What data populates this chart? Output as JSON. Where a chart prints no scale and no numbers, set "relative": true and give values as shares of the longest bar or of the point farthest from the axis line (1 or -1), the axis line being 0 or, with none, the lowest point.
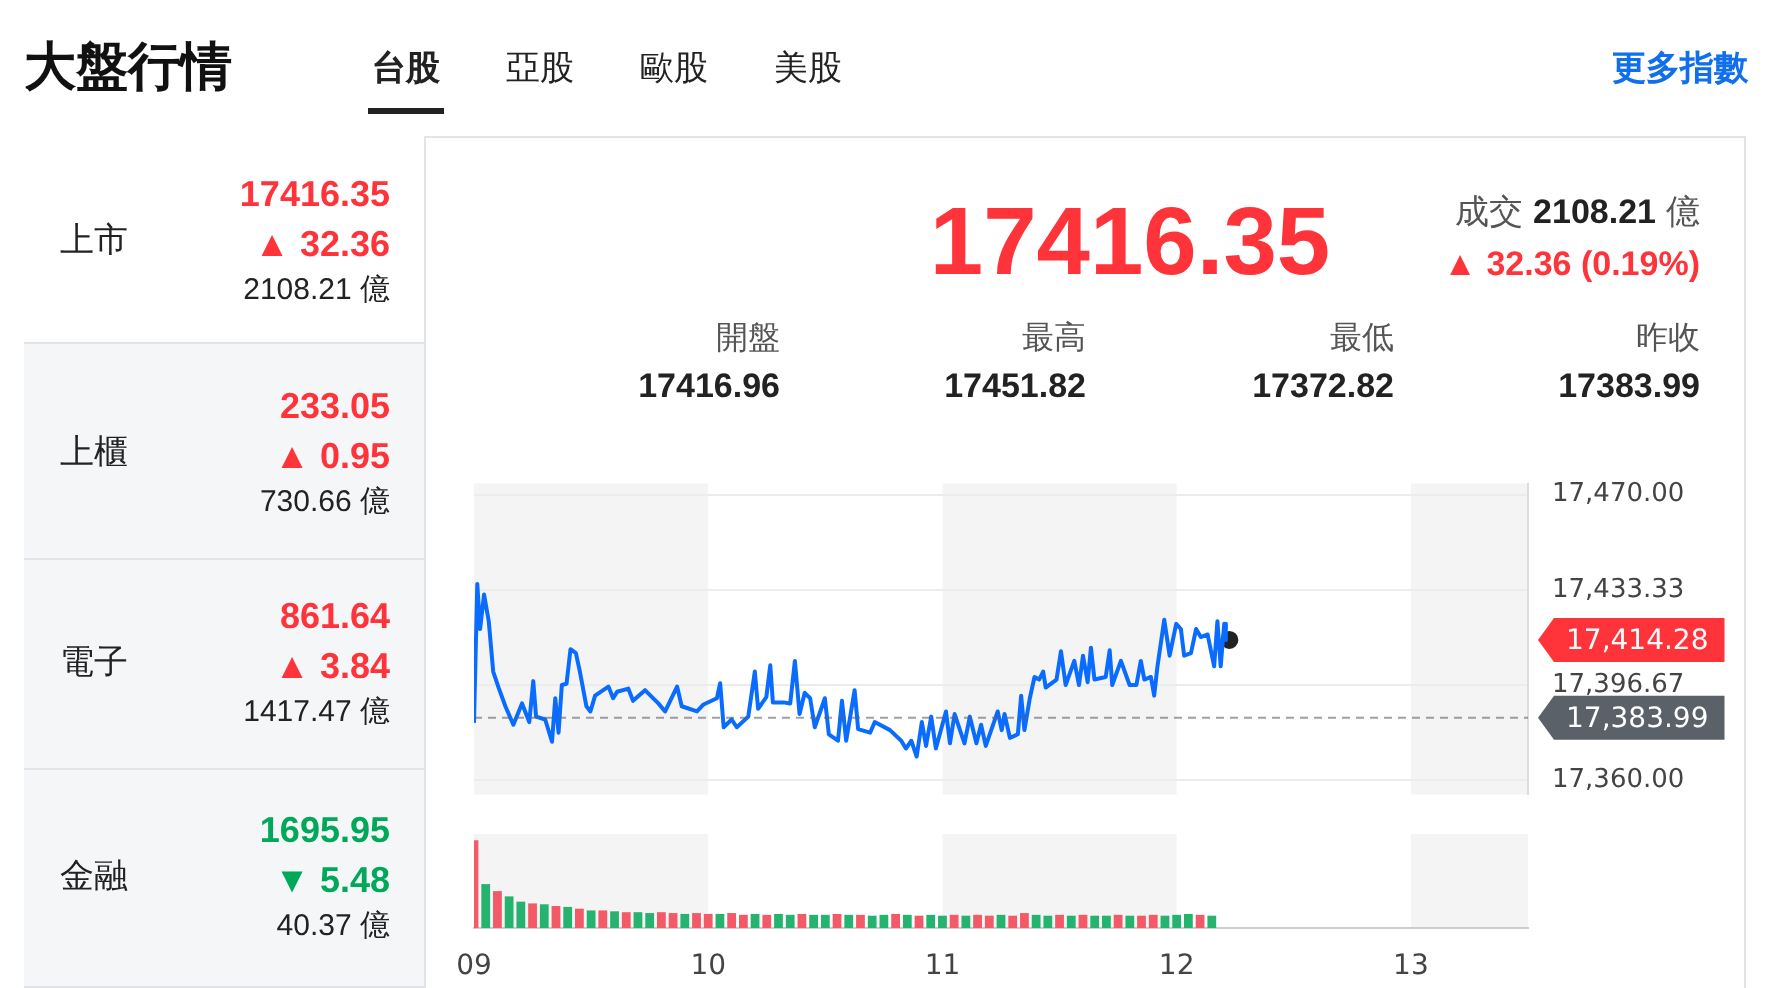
{
  "chart_data": [
    {
      "type": "other",
      "title": "大盤行情",
      "annotations": [
        "台股",
        "亞股",
        "歐股",
        "美股",
        "更多指數",
        "上市",
        "17416.35",
        "▲ 32.36",
        "2108.21 億",
        "上櫃",
        "233.05",
        "▲ 0.95",
        "730.66 億",
        "電子",
        "861.64",
        "▲ 3.84",
        "1417.47 億",
        "金融",
        "1695.95",
        "▼ 5.48",
        "40.37 億",
        "17416.35",
        "成交",
        "2108.21",
        "億",
        "▲ 32.36 (0.19%)",
        "開盤",
        "17416.96",
        "最高",
        "17451.82",
        "最低",
        "17372.82",
        "昨收",
        "17383.99"
      ]
    },
    {
      "type": "line",
      "xlim": [
        9,
        13.5
      ],
      "ylim": [
        17354.4,
        17474.3
      ],
      "yticks": [
        {
          "value": 17470,
          "label": "17,470.00"
        },
        {
          "value": 17433.33,
          "label": "17,433.33"
        },
        {
          "value": 17396.67,
          "label": "17,396.67"
        },
        {
          "value": 17360,
          "label": "17,360.00"
        }
      ],
      "grid": "y",
      "tick_labels": "y",
      "bands": [
        {
          "axis": "x",
          "from": 9,
          "to": 10,
          "color": "#f4f4f4"
        },
        {
          "axis": "x",
          "from": 11,
          "to": 12,
          "color": "#f4f4f4"
        },
        {
          "axis": "x",
          "from": 13,
          "to": 13.5,
          "color": "#f4f4f4"
        }
      ],
      "ref_lines": [
        {
          "axis": "y",
          "value": 17383.99,
          "label": "17,383.99",
          "color": "#5b6168",
          "line_style": "dashed"
        }
      ],
      "annotations": [
        {
          "text": "17,414.28",
          "x": 13.5,
          "y": 17414
        }
      ],
      "series": [
        {
          "color": "#0a6cff",
          "x": [
            9.0,
            9.014,
            9.026,
            9.043,
            9.063,
            9.082,
            9.105,
            9.134,
            9.168,
            9.205,
            9.236,
            9.253,
            9.265,
            9.304,
            9.333,
            9.347,
            9.361,
            9.375,
            9.395,
            9.412,
            9.435,
            9.452,
            9.48,
            9.497,
            9.517,
            9.574,
            9.594,
            9.611,
            9.659,
            9.679,
            9.73,
            9.787,
            9.816,
            9.867,
            9.887,
            9.952,
            9.98,
            10.037,
            10.051,
            10.066,
            10.1,
            10.122,
            10.171,
            10.199,
            10.213,
            10.248,
            10.265,
            10.276,
            10.321,
            10.35,
            10.37,
            10.39,
            10.412,
            10.435,
            10.455,
            10.498,
            10.515,
            10.554,
            10.571,
            10.589,
            10.625,
            10.64,
            10.691,
            10.711,
            10.776,
            10.824,
            10.844,
            10.867,
            10.89,
            10.912,
            10.93,
            10.952,
            10.972,
            11.015,
            11.032,
            11.052,
            11.094,
            11.117,
            11.145,
            11.165,
            11.185,
            11.236,
            11.253,
            11.265,
            11.288,
            11.322,
            11.336,
            11.35,
            11.373,
            11.393,
            11.413,
            11.43,
            11.441,
            11.487,
            11.506,
            11.526,
            11.563,
            11.583,
            11.6,
            11.62,
            11.634,
            11.649,
            11.697,
            11.714,
            11.725,
            11.762,
            11.799,
            11.828,
            11.847,
            11.862,
            11.89,
            11.904,
            11.918,
            11.947,
            11.97,
            11.998,
            12.018,
            12.032,
            12.061,
            12.083,
            12.103,
            12.132,
            12.16,
            12.174,
            12.188,
            12.203,
            12.21
          ],
          "values": [
            17382,
            17435.6,
            17418.2,
            17431.5,
            17421.2,
            17401.8,
            17395.6,
            17388.4,
            17381.3,
            17389.5,
            17382.3,
            17398.1,
            17384.4,
            17383.3,
            17374.7,
            17391.5,
            17378.2,
            17396.6,
            17397.1,
            17410.4,
            17408.9,
            17401.8,
            17388.4,
            17386.4,
            17392.5,
            17396,
            17391.5,
            17394,
            17395.2,
            17390.5,
            17394.6,
            17389.5,
            17386.4,
            17396,
            17388.4,
            17386.4,
            17389.1,
            17391.5,
            17397.3,
            17380.3,
            17383.3,
            17380.3,
            17384.4,
            17401.8,
            17387.4,
            17391.9,
            17404.2,
            17389.9,
            17389.9,
            17389.5,
            17405.9,
            17385.4,
            17393.6,
            17391.5,
            17380.3,
            17391.5,
            17377.6,
            17375.1,
            17390.5,
            17375.1,
            17394.6,
            17379.6,
            17378.2,
            17382.3,
            17379.2,
            17375.1,
            17372.1,
            17375.1,
            17369,
            17382.3,
            17373.1,
            17384.4,
            17372.1,
            17386.4,
            17374.1,
            17385.4,
            17374.1,
            17384.4,
            17374.1,
            17381.3,
            17373.1,
            17386.4,
            17379.2,
            17385.4,
            17376.2,
            17377.6,
            17392.5,
            17379.2,
            17391.5,
            17399.7,
            17398.7,
            17401.8,
            17395.6,
            17398.7,
            17409.6,
            17396.6,
            17405.9,
            17396.6,
            17407.9,
            17397.7,
            17411,
            17398.7,
            17399.7,
            17410,
            17396.6,
            17405.9,
            17396.6,
            17396.6,
            17405.9,
            17398.7,
            17399.7,
            17392.5,
            17403.8,
            17421.8,
            17407.9,
            17420.2,
            17418.2,
            17407.9,
            17408.9,
            17418.2,
            17415.1,
            17416.1,
            17403.8,
            17421.2,
            17403.8,
            17420.2,
            17414
          ]
        },
        {
          "type": "scatter",
          "color": "#222222",
          "x": [
            12.225
          ],
          "values": [
            17414
          ]
        }
      ]
    },
    {
      "type": "bar",
      "relative": true,
      "xlim": [
        9,
        13.5
      ],
      "xticks": [
        {
          "value": 9,
          "label": "09"
        },
        10,
        11,
        12,
        13
      ],
      "tick_labels": "x",
      "bands": [
        {
          "axis": "x",
          "from": 9,
          "to": 10,
          "color": "#f4f4f4"
        },
        {
          "axis": "x",
          "from": 11,
          "to": 12,
          "color": "#f4f4f4"
        },
        {
          "axis": "x",
          "from": 13,
          "to": 13.5,
          "color": "#f4f4f4"
        }
      ],
      "x": [
        9,
        9.05,
        9.1,
        9.15,
        9.2,
        9.25,
        9.3,
        9.35,
        9.4,
        9.45,
        9.5,
        9.55,
        9.6,
        9.65,
        9.7,
        9.75,
        9.8,
        9.85,
        9.9,
        9.95,
        10,
        10.05,
        10.1,
        10.15,
        10.2,
        10.25,
        10.3,
        10.35,
        10.4,
        10.45,
        10.5,
        10.55,
        10.6,
        10.65,
        10.7,
        10.75,
        10.8,
        10.85,
        10.9,
        10.95,
        11,
        11.05,
        11.1,
        11.15,
        11.2,
        11.25,
        11.3,
        11.35,
        11.4,
        11.45,
        11.5,
        11.55,
        11.6,
        11.65,
        11.7,
        11.75,
        11.8,
        11.85,
        11.9,
        11.95,
        12,
        12.05,
        12.1,
        12.15
      ],
      "values": [
        1,
        0.5,
        0.42,
        0.36,
        0.3,
        0.28,
        0.27,
        0.25,
        0.24,
        0.22,
        0.2,
        0.2,
        0.19,
        0.18,
        0.18,
        0.17,
        0.18,
        0.17,
        0.16,
        0.17,
        0.16,
        0.16,
        0.17,
        0.15,
        0.16,
        0.15,
        0.16,
        0.15,
        0.16,
        0.15,
        0.15,
        0.16,
        0.15,
        0.15,
        0.14,
        0.15,
        0.16,
        0.15,
        0.14,
        0.15,
        0.14,
        0.15,
        0.14,
        0.15,
        0.14,
        0.15,
        0.14,
        0.17,
        0.15,
        0.14,
        0.15,
        0.14,
        0.15,
        0.14,
        0.14,
        0.15,
        0.14,
        0.14,
        0.15,
        0.14,
        0.15,
        0.16,
        0.15,
        0.14
      ],
      "colors": [
        "#f25a68",
        "#25b36f",
        "#f25a68",
        "#25b36f",
        "#25b36f",
        "#f25a68",
        "#25b36f",
        "#f25a68",
        "#25b36f",
        "#f25a68",
        "#25b36f",
        "#f25a68",
        "#25b36f",
        "#f25a68",
        "#25b36f",
        "#25b36f",
        "#f25a68",
        "#f25a68",
        "#25b36f",
        "#f25a68",
        "#f25a68",
        "#25b36f",
        "#f25a68",
        "#f25a68",
        "#25b36f",
        "#f25a68",
        "#25b36f",
        "#25b36f",
        "#f25a68",
        "#25b36f",
        "#25b36f",
        "#f25a68",
        "#25b36f",
        "#f25a68",
        "#25b36f",
        "#25b36f",
        "#f25a68",
        "#25b36f",
        "#f25a68",
        "#25b36f",
        "#25b36f",
        "#f25a68",
        "#25b36f",
        "#f25a68",
        "#f25a68",
        "#25b36f",
        "#f25a68",
        "#f25a68",
        "#25b36f",
        "#25b36f",
        "#f25a68",
        "#25b36f",
        "#f25a68",
        "#25b36f",
        "#25b36f",
        "#f25a68",
        "#25b36f",
        "#f25a68",
        "#f25a68",
        "#25b36f",
        "#25b36f",
        "#25b36f",
        "#f25a68",
        "#25b36f"
      ]
    }
  ]
}
